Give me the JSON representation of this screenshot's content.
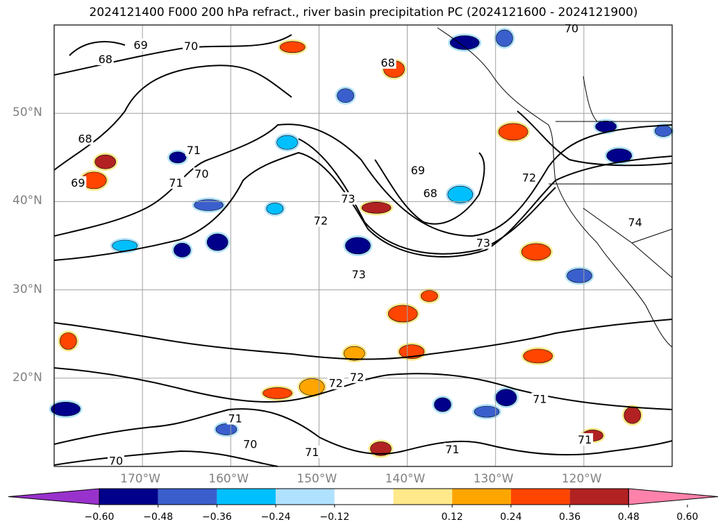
{
  "title": "2024121400 F000 200 hPa refract., river basin precipitation PC (2024121600 - 2024121900)",
  "map": {
    "lon_range": [
      -180,
      -110
    ],
    "lat_range": [
      10,
      60
    ],
    "gridlines": true,
    "lat_ticks": [
      {
        "value": 20,
        "label": "20°N"
      },
      {
        "value": 30,
        "label": "30°N"
      },
      {
        "value": 40,
        "label": "40°N"
      },
      {
        "value": 50,
        "label": "50°N"
      }
    ],
    "lon_ticks": [
      {
        "value": -170,
        "label": "170°W"
      },
      {
        "value": -160,
        "label": "160°W"
      },
      {
        "value": -150,
        "label": "150°W"
      },
      {
        "value": -140,
        "label": "140°W"
      },
      {
        "value": -130,
        "label": "130°W"
      },
      {
        "value": -120,
        "label": "120°W"
      }
    ],
    "contour_labels": [
      {
        "text": "70",
        "lon": -164.5,
        "lat": 57.5
      },
      {
        "text": "69",
        "lon": -170.2,
        "lat": 57.6
      },
      {
        "text": "68",
        "lon": -174.2,
        "lat": 56.0
      },
      {
        "text": "68",
        "lon": -176.5,
        "lat": 47.0
      },
      {
        "text": "69",
        "lon": -177.3,
        "lat": 42.0
      },
      {
        "text": "71",
        "lon": -164.2,
        "lat": 45.7
      },
      {
        "text": "71",
        "lon": -166.2,
        "lat": 42.0
      },
      {
        "text": "70",
        "lon": -163.3,
        "lat": 43.0
      },
      {
        "text": "73",
        "lon": -146.7,
        "lat": 40.2
      },
      {
        "text": "72",
        "lon": -149.8,
        "lat": 37.7
      },
      {
        "text": "69",
        "lon": -138.8,
        "lat": 43.4
      },
      {
        "text": "68",
        "lon": -137.4,
        "lat": 40.8
      },
      {
        "text": "73",
        "lon": -131.4,
        "lat": 35.2
      },
      {
        "text": "72",
        "lon": -126.2,
        "lat": 42.6
      },
      {
        "text": "74",
        "lon": -114.2,
        "lat": 37.5
      },
      {
        "text": "73",
        "lon": -145.5,
        "lat": 31.6
      },
      {
        "text": "72",
        "lon": -148.1,
        "lat": 19.3
      },
      {
        "text": "72",
        "lon": -145.7,
        "lat": 20.0
      },
      {
        "text": "68",
        "lon": -142.2,
        "lat": 55.6
      },
      {
        "text": "70",
        "lon": -121.4,
        "lat": 59.5
      },
      {
        "text": "71",
        "lon": -159.5,
        "lat": 15.3
      },
      {
        "text": "70",
        "lon": -157.8,
        "lat": 12.4
      },
      {
        "text": "70",
        "lon": -173.0,
        "lat": 10.5
      },
      {
        "text": "71",
        "lon": -125.0,
        "lat": 17.5
      },
      {
        "text": "71",
        "lon": -134.9,
        "lat": 11.8
      },
      {
        "text": "71",
        "lon": -150.8,
        "lat": 11.5
      },
      {
        "text": "71",
        "lon": -119.9,
        "lat": 12.9
      }
    ]
  },
  "colorbar": {
    "colors": [
      "#9932CC",
      "#00008B",
      "#3A5FCD",
      "#00BFFF",
      "#B0E2FF",
      "#FFFFFF",
      "#FFE98A",
      "#FFA500",
      "#FF4500",
      "#B22222",
      "#FF82AB"
    ],
    "ticks": [
      {
        "value": -0.6,
        "label": "−0.60"
      },
      {
        "value": -0.48,
        "label": "−0.48"
      },
      {
        "value": -0.36,
        "label": "−0.36"
      },
      {
        "value": -0.24,
        "label": "−0.24"
      },
      {
        "value": -0.12,
        "label": "−0.12"
      },
      {
        "value": 0.12,
        "label": "0.12"
      },
      {
        "value": 0.24,
        "label": "0.24"
      },
      {
        "value": 0.36,
        "label": "0.36"
      },
      {
        "value": 0.48,
        "label": "0.48"
      },
      {
        "value": 0.6,
        "label": "0.60"
      }
    ]
  },
  "precip_blobs": [
    {
      "lon": -155.0,
      "lat": 39.2,
      "level": -0.24
    },
    {
      "lon": -153.6,
      "lat": 46.7,
      "level": -0.24
    },
    {
      "lon": -145.6,
      "lat": 35.0,
      "level": -0.48
    },
    {
      "lon": -143.5,
      "lat": 39.3,
      "level": 0.48
    },
    {
      "lon": -147.0,
      "lat": 52.0,
      "level": -0.36
    },
    {
      "lon": -141.5,
      "lat": 55.0,
      "level": 0.36
    },
    {
      "lon": -153.0,
      "lat": 57.5,
      "level": 0.36
    },
    {
      "lon": -133.5,
      "lat": 58.0,
      "level": -0.48
    },
    {
      "lon": -129.0,
      "lat": 58.5,
      "level": -0.36
    },
    {
      "lon": -117.5,
      "lat": 48.5,
      "level": -0.6
    },
    {
      "lon": -116.0,
      "lat": 45.2,
      "level": -0.6
    },
    {
      "lon": -128.0,
      "lat": 47.9,
      "level": 0.36
    },
    {
      "lon": -166.0,
      "lat": 45.0,
      "level": -0.48
    },
    {
      "lon": -174.2,
      "lat": 44.5,
      "level": 0.48
    },
    {
      "lon": -175.5,
      "lat": 42.4,
      "level": 0.36
    },
    {
      "lon": -162.5,
      "lat": 39.6,
      "level": -0.36
    },
    {
      "lon": -165.5,
      "lat": 34.5,
      "level": -0.48
    },
    {
      "lon": -161.5,
      "lat": 35.4,
      "level": -0.48
    },
    {
      "lon": -172.0,
      "lat": 35.0,
      "level": -0.24
    },
    {
      "lon": -178.7,
      "lat": 16.5,
      "level": -0.6
    },
    {
      "lon": -178.4,
      "lat": 24.2,
      "level": 0.36
    },
    {
      "lon": -160.5,
      "lat": 14.2,
      "level": -0.36
    },
    {
      "lon": -139.5,
      "lat": 23.0,
      "level": 0.36
    },
    {
      "lon": -140.5,
      "lat": 27.3,
      "level": 0.36
    },
    {
      "lon": -137.5,
      "lat": 29.3,
      "level": 0.36
    },
    {
      "lon": -146.0,
      "lat": 22.8,
      "level": 0.24
    },
    {
      "lon": -150.8,
      "lat": 19.0,
      "level": 0.24
    },
    {
      "lon": -154.7,
      "lat": 18.3,
      "level": 0.36
    },
    {
      "lon": -136.0,
      "lat": 17.0,
      "level": -0.6
    },
    {
      "lon": -128.8,
      "lat": 17.8,
      "level": -0.48
    },
    {
      "lon": -131.0,
      "lat": 16.2,
      "level": -0.36
    },
    {
      "lon": -125.2,
      "lat": 22.5,
      "level": 0.36
    },
    {
      "lon": -114.5,
      "lat": 15.8,
      "level": 0.48
    },
    {
      "lon": -119.0,
      "lat": 13.5,
      "level": 0.48
    },
    {
      "lon": -120.5,
      "lat": 31.6,
      "level": -0.36
    },
    {
      "lon": -125.4,
      "lat": 34.3,
      "level": 0.36
    },
    {
      "lon": -111.0,
      "lat": 48.0,
      "level": -0.36
    },
    {
      "lon": -143.0,
      "lat": 12.0,
      "level": 0.48
    },
    {
      "lon": -134.0,
      "lat": 40.8,
      "level": -0.24
    }
  ]
}
